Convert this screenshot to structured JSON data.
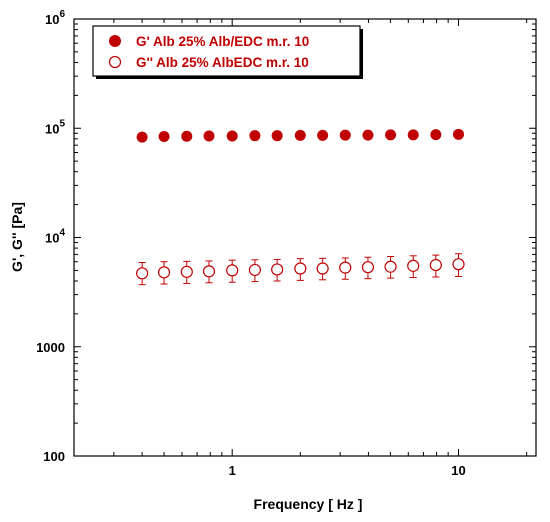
{
  "chart_data": {
    "type": "scatter",
    "title": "",
    "xlabel": "Frequency [ Hz ]",
    "ylabel": "G', G'' [Pa]",
    "x_scale": "log",
    "y_scale": "log",
    "xlim": [
      0.2,
      22
    ],
    "ylim": [
      100,
      1000000
    ],
    "x_ticks": [
      {
        "value": 1,
        "label": "1"
      },
      {
        "value": 10,
        "label": "10"
      }
    ],
    "y_ticks": [
      {
        "value": 100,
        "label": "100",
        "exp": ""
      },
      {
        "value": 1000,
        "label": "1000",
        "exp": ""
      },
      {
        "value": 10000,
        "label": "10",
        "exp": "4"
      },
      {
        "value": 100000,
        "label": "10",
        "exp": "5"
      },
      {
        "value": 1000000,
        "label": "10",
        "exp": "6"
      }
    ],
    "grid": false,
    "legend_position": "top-left",
    "colors": {
      "series": "#c00000",
      "axes": "#000000"
    },
    "x": [
      0.4,
      0.5,
      0.63,
      0.79,
      1.0,
      1.26,
      1.58,
      2.0,
      2.51,
      3.16,
      3.98,
      5.01,
      6.31,
      7.94,
      10.0
    ],
    "series": [
      {
        "name": "G' Alb 25% Alb/EDC m.r. 10",
        "marker": "filled-circle",
        "values": [
          83000,
          84000,
          84500,
          85000,
          85000,
          85500,
          85500,
          86000,
          86000,
          86500,
          86500,
          87000,
          87000,
          87500,
          88000
        ]
      },
      {
        "name": "G''  Alb 25% AlbEDC m.r. 10",
        "marker": "open-circle",
        "values": [
          4700,
          4800,
          4850,
          4900,
          5000,
          5050,
          5100,
          5200,
          5200,
          5300,
          5350,
          5400,
          5500,
          5600,
          5700
        ],
        "error_low": [
          3700,
          3750,
          3800,
          3850,
          3900,
          3950,
          4000,
          4050,
          4100,
          4150,
          4200,
          4250,
          4300,
          4350,
          4400
        ],
        "error_high": [
          5900,
          6000,
          6050,
          6100,
          6200,
          6250,
          6300,
          6400,
          6450,
          6500,
          6600,
          6700,
          6800,
          6900,
          7100
        ]
      }
    ]
  }
}
